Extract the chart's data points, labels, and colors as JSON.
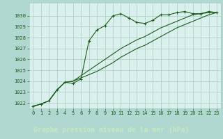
{
  "title": "Graphe pression niveau de la mer (hPa)",
  "background_color": "#b0d8d0",
  "plot_bg_color": "#daf0ec",
  "grid_color": "#aaccc4",
  "line_color": "#1a5c1a",
  "marker_color": "#1a5c1a",
  "xlabel_bg": "#2d6b2d",
  "xlabel_fg": "#c8e8c0",
  "xlim": [
    -0.5,
    23.5
  ],
  "ylim": [
    1021.5,
    1031.2
  ],
  "yticks": [
    1022,
    1023,
    1024,
    1025,
    1026,
    1027,
    1028,
    1029,
    1030
  ],
  "xticks": [
    0,
    1,
    2,
    3,
    4,
    5,
    6,
    7,
    8,
    9,
    10,
    11,
    12,
    13,
    14,
    15,
    16,
    17,
    18,
    19,
    20,
    21,
    22,
    23
  ],
  "series": [
    [
      1021.7,
      1021.9,
      1022.2,
      1023.2,
      1023.9,
      1023.8,
      1024.2,
      1027.7,
      1028.7,
      1029.1,
      1030.0,
      1030.2,
      1029.8,
      1029.4,
      1029.3,
      1029.6,
      1030.1,
      1030.1,
      1030.3,
      1030.4,
      1030.2,
      1030.2,
      1030.4,
      1030.3
    ],
    [
      1021.7,
      1021.9,
      1022.2,
      1023.2,
      1023.9,
      1024.0,
      1024.3,
      1024.6,
      1024.9,
      1025.3,
      1025.7,
      1026.2,
      1026.6,
      1027.0,
      1027.3,
      1027.7,
      1028.1,
      1028.5,
      1028.9,
      1029.2,
      1029.5,
      1029.8,
      1030.1,
      1030.3
    ],
    [
      1021.7,
      1021.9,
      1022.2,
      1023.2,
      1023.9,
      1024.0,
      1024.5,
      1025.0,
      1025.5,
      1026.0,
      1026.5,
      1027.0,
      1027.4,
      1027.8,
      1028.1,
      1028.5,
      1028.9,
      1029.2,
      1029.5,
      1029.8,
      1030.1,
      1030.2,
      1030.3,
      1030.3
    ]
  ]
}
